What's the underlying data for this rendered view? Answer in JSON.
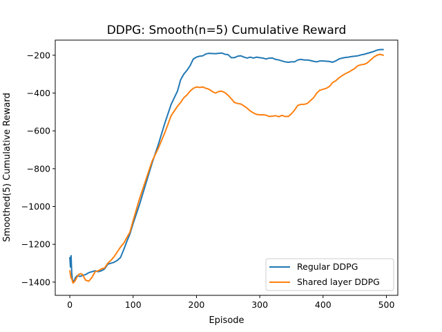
{
  "chart_data": {
    "type": "line",
    "title": "DDPG: Smooth(n=5) Cumulative Reward",
    "xlabel": "Episode",
    "ylabel": "Smoothed(5) Cumulative Reward",
    "xlim": [
      -23,
      518
    ],
    "ylim": [
      -1470,
      -120
    ],
    "xticks": [
      0,
      100,
      200,
      300,
      400,
      500
    ],
    "yticks": [
      -1400,
      -1200,
      -1000,
      -800,
      -600,
      -400,
      -200
    ],
    "grid": false,
    "legend_position": "lower-right",
    "series": [
      {
        "name": "Regular DDPG",
        "color": "#1f77b4",
        "points": [
          [
            0,
            -1270
          ],
          [
            1,
            -1320
          ],
          [
            2,
            -1260
          ],
          [
            3,
            -1350
          ],
          [
            4,
            -1385
          ],
          [
            6,
            -1400
          ],
          [
            9,
            -1375
          ],
          [
            12,
            -1365
          ],
          [
            16,
            -1370
          ],
          [
            20,
            -1365
          ],
          [
            25,
            -1360
          ],
          [
            30,
            -1350
          ],
          [
            35,
            -1345
          ],
          [
            40,
            -1340
          ],
          [
            45,
            -1345
          ],
          [
            50,
            -1340
          ],
          [
            55,
            -1330
          ],
          [
            60,
            -1305
          ],
          [
            65,
            -1300
          ],
          [
            70,
            -1295
          ],
          [
            75,
            -1285
          ],
          [
            80,
            -1270
          ],
          [
            85,
            -1230
          ],
          [
            90,
            -1185
          ],
          [
            95,
            -1145
          ],
          [
            100,
            -1090
          ],
          [
            110,
            -990
          ],
          [
            120,
            -880
          ],
          [
            130,
            -770
          ],
          [
            140,
            -670
          ],
          [
            150,
            -560
          ],
          [
            160,
            -460
          ],
          [
            170,
            -390
          ],
          [
            175,
            -330
          ],
          [
            180,
            -300
          ],
          [
            185,
            -280
          ],
          [
            190,
            -255
          ],
          [
            195,
            -220
          ],
          [
            200,
            -210
          ],
          [
            205,
            -205
          ],
          [
            210,
            -203
          ],
          [
            215,
            -193
          ],
          [
            220,
            -190
          ],
          [
            230,
            -192
          ],
          [
            240,
            -188
          ],
          [
            245,
            -195
          ],
          [
            250,
            -197
          ],
          [
            255,
            -213
          ],
          [
            260,
            -213
          ],
          [
            265,
            -205
          ],
          [
            270,
            -203
          ],
          [
            275,
            -210
          ],
          [
            280,
            -215
          ],
          [
            285,
            -210
          ],
          [
            290,
            -215
          ],
          [
            295,
            -210
          ],
          [
            300,
            -213
          ],
          [
            305,
            -215
          ],
          [
            310,
            -220
          ],
          [
            315,
            -215
          ],
          [
            320,
            -215
          ],
          [
            325,
            -222
          ],
          [
            330,
            -225
          ],
          [
            335,
            -230
          ],
          [
            340,
            -235
          ],
          [
            345,
            -237
          ],
          [
            350,
            -235
          ],
          [
            355,
            -235
          ],
          [
            360,
            -225
          ],
          [
            365,
            -222
          ],
          [
            370,
            -225
          ],
          [
            375,
            -225
          ],
          [
            380,
            -228
          ],
          [
            385,
            -232
          ],
          [
            390,
            -235
          ],
          [
            395,
            -230
          ],
          [
            400,
            -230
          ],
          [
            410,
            -233
          ],
          [
            415,
            -237
          ],
          [
            420,
            -230
          ],
          [
            425,
            -220
          ],
          [
            430,
            -215
          ],
          [
            435,
            -212
          ],
          [
            440,
            -210
          ],
          [
            445,
            -207
          ],
          [
            450,
            -205
          ],
          [
            455,
            -203
          ],
          [
            460,
            -198
          ],
          [
            465,
            -195
          ],
          [
            470,
            -190
          ],
          [
            475,
            -185
          ],
          [
            480,
            -180
          ],
          [
            485,
            -173
          ],
          [
            490,
            -170
          ],
          [
            495,
            -170
          ]
        ]
      },
      {
        "name": "Shared layer DDPG",
        "color": "#ff7f0e",
        "points": [
          [
            0,
            -1340
          ],
          [
            1,
            -1360
          ],
          [
            2,
            -1380
          ],
          [
            3,
            -1380
          ],
          [
            5,
            -1405
          ],
          [
            8,
            -1395
          ],
          [
            11,
            -1375
          ],
          [
            14,
            -1360
          ],
          [
            17,
            -1355
          ],
          [
            20,
            -1360
          ],
          [
            25,
            -1390
          ],
          [
            30,
            -1395
          ],
          [
            35,
            -1375
          ],
          [
            40,
            -1345
          ],
          [
            45,
            -1340
          ],
          [
            50,
            -1330
          ],
          [
            55,
            -1325
          ],
          [
            60,
            -1300
          ],
          [
            65,
            -1285
          ],
          [
            70,
            -1265
          ],
          [
            75,
            -1240
          ],
          [
            80,
            -1215
          ],
          [
            85,
            -1195
          ],
          [
            90,
            -1165
          ],
          [
            95,
            -1135
          ],
          [
            100,
            -1075
          ],
          [
            110,
            -960
          ],
          [
            120,
            -860
          ],
          [
            130,
            -760
          ],
          [
            140,
            -690
          ],
          [
            150,
            -610
          ],
          [
            160,
            -520
          ],
          [
            170,
            -470
          ],
          [
            175,
            -450
          ],
          [
            180,
            -425
          ],
          [
            185,
            -410
          ],
          [
            190,
            -390
          ],
          [
            195,
            -375
          ],
          [
            200,
            -368
          ],
          [
            205,
            -370
          ],
          [
            210,
            -368
          ],
          [
            215,
            -375
          ],
          [
            220,
            -380
          ],
          [
            225,
            -392
          ],
          [
            230,
            -400
          ],
          [
            235,
            -392
          ],
          [
            240,
            -390
          ],
          [
            245,
            -398
          ],
          [
            250,
            -412
          ],
          [
            255,
            -430
          ],
          [
            260,
            -450
          ],
          [
            265,
            -455
          ],
          [
            270,
            -458
          ],
          [
            275,
            -468
          ],
          [
            280,
            -480
          ],
          [
            285,
            -495
          ],
          [
            290,
            -505
          ],
          [
            295,
            -513
          ],
          [
            300,
            -515
          ],
          [
            305,
            -515
          ],
          [
            310,
            -517
          ],
          [
            315,
            -524
          ],
          [
            320,
            -522
          ],
          [
            325,
            -520
          ],
          [
            330,
            -525
          ],
          [
            335,
            -518
          ],
          [
            340,
            -524
          ],
          [
            345,
            -524
          ],
          [
            350,
            -510
          ],
          [
            355,
            -490
          ],
          [
            360,
            -465
          ],
          [
            365,
            -460
          ],
          [
            370,
            -460
          ],
          [
            375,
            -455
          ],
          [
            380,
            -440
          ],
          [
            385,
            -425
          ],
          [
            390,
            -400
          ],
          [
            395,
            -385
          ],
          [
            400,
            -380
          ],
          [
            405,
            -375
          ],
          [
            410,
            -365
          ],
          [
            415,
            -345
          ],
          [
            420,
            -335
          ],
          [
            425,
            -320
          ],
          [
            430,
            -308
          ],
          [
            435,
            -298
          ],
          [
            440,
            -290
          ],
          [
            445,
            -280
          ],
          [
            450,
            -270
          ],
          [
            455,
            -255
          ],
          [
            460,
            -250
          ],
          [
            465,
            -248
          ],
          [
            470,
            -240
          ],
          [
            475,
            -225
          ],
          [
            480,
            -210
          ],
          [
            485,
            -200
          ],
          [
            490,
            -195
          ],
          [
            495,
            -200
          ]
        ]
      }
    ]
  }
}
